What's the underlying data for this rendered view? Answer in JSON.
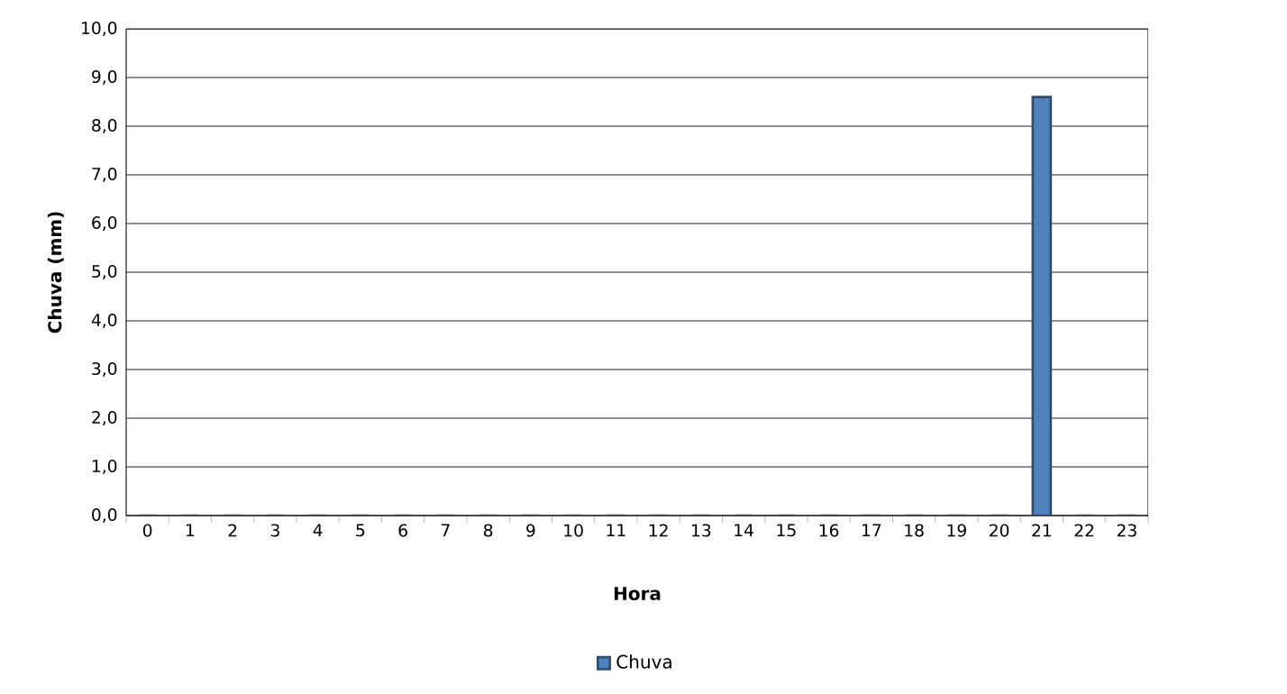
{
  "chart_data": {
    "type": "bar",
    "xlabel": "Hora",
    "ylabel": "Chuva (mm)",
    "categories": [
      "0",
      "1",
      "2",
      "3",
      "4",
      "5",
      "6",
      "7",
      "8",
      "9",
      "10",
      "11",
      "12",
      "13",
      "14",
      "15",
      "16",
      "17",
      "18",
      "19",
      "20",
      "21",
      "22",
      "23"
    ],
    "series": [
      {
        "name": "Chuva",
        "color": "#4f81bd",
        "values": [
          0,
          0,
          0,
          0,
          0,
          0,
          0,
          0,
          0,
          0,
          0,
          0,
          0,
          0,
          0,
          0,
          0,
          0,
          0,
          0,
          0,
          8.6,
          0,
          0
        ]
      }
    ],
    "ylim": [
      0,
      10
    ],
    "yticks": [
      {
        "value": 0,
        "label": "0,0"
      },
      {
        "value": 1,
        "label": "1,0"
      },
      {
        "value": 2,
        "label": "2,0"
      },
      {
        "value": 3,
        "label": "3,0"
      },
      {
        "value": 4,
        "label": "4,0"
      },
      {
        "value": 5,
        "label": "5,0"
      },
      {
        "value": 6,
        "label": "6,0"
      },
      {
        "value": 7,
        "label": "7,0"
      },
      {
        "value": 8,
        "label": "8,0"
      },
      {
        "value": 9,
        "label": "9,0"
      },
      {
        "value": 10,
        "label": "10,0"
      }
    ],
    "grid": "y",
    "legend": "bottom"
  }
}
